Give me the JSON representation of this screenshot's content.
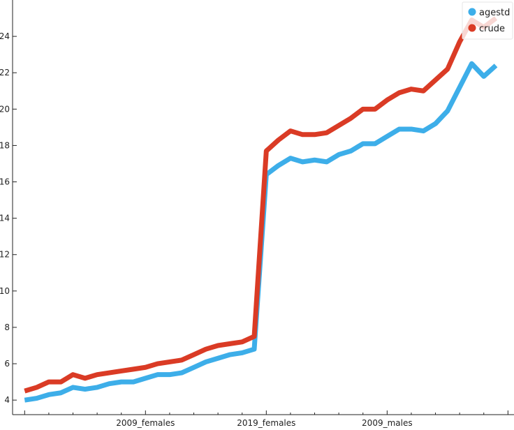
{
  "chart_data": {
    "type": "line",
    "x": [
      0,
      1,
      2,
      3,
      4,
      5,
      6,
      7,
      8,
      9,
      10,
      11,
      12,
      13,
      14,
      15,
      16,
      17,
      18,
      19,
      20,
      21,
      22,
      23,
      24,
      25,
      26,
      27,
      28,
      29,
      30,
      31,
      32,
      33,
      34,
      35,
      36,
      37,
      38,
      39
    ],
    "xtick_labels": [
      {
        "at": 10,
        "label": "2009_females"
      },
      {
        "at": 20,
        "label": "2019_females"
      },
      {
        "at": 30,
        "label": "2009_males"
      }
    ],
    "xlim": [
      -1,
      40.5
    ],
    "ylim": [
      3.2,
      26
    ],
    "yticks": [
      4,
      6,
      8,
      10,
      12,
      14,
      16,
      18,
      20,
      22,
      24
    ],
    "grid": false,
    "legend": "top-right",
    "series": [
      {
        "name": "agestd",
        "color": "#3daee9",
        "values": [
          4.0,
          4.1,
          4.3,
          4.4,
          4.7,
          4.6,
          4.7,
          4.9,
          5.0,
          5.0,
          5.2,
          5.4,
          5.4,
          5.5,
          5.8,
          6.1,
          6.3,
          6.5,
          6.6,
          6.8,
          16.4,
          16.9,
          17.3,
          17.1,
          17.2,
          17.1,
          17.5,
          17.7,
          18.1,
          18.1,
          18.5,
          18.9,
          18.9,
          18.8,
          19.2,
          19.9,
          21.2,
          22.5,
          21.8,
          22.4
        ]
      },
      {
        "name": "crude",
        "color": "#da3b25",
        "values": [
          4.5,
          4.7,
          5.0,
          5.0,
          5.4,
          5.2,
          5.4,
          5.5,
          5.6,
          5.7,
          5.8,
          6.0,
          6.1,
          6.2,
          6.5,
          6.8,
          7.0,
          7.1,
          7.2,
          7.5,
          17.7,
          18.3,
          18.8,
          18.6,
          18.6,
          18.7,
          19.1,
          19.5,
          20.0,
          20.0,
          20.5,
          20.9,
          21.1,
          21.0,
          21.6,
          22.2,
          23.7,
          24.9,
          24.5,
          25.0
        ]
      }
    ]
  }
}
